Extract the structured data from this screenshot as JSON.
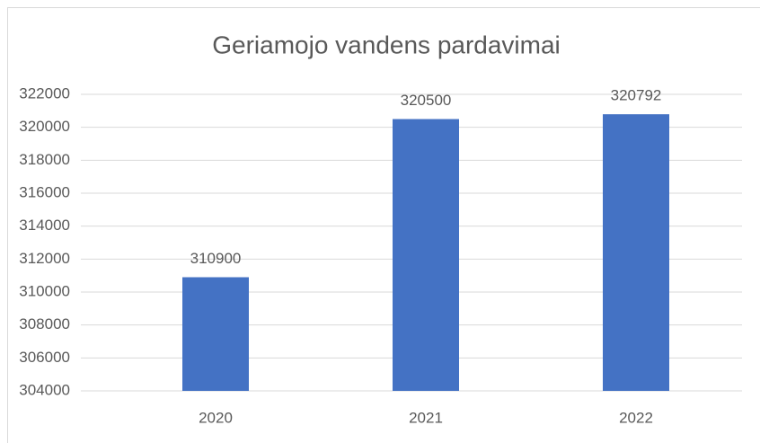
{
  "chart_data": {
    "type": "bar",
    "title": "Geriamojo vandens pardavimai",
    "categories": [
      "2020",
      "2021",
      "2022"
    ],
    "values": [
      310900,
      320500,
      320792
    ],
    "color": "#4472c4",
    "ylim": [
      304000,
      322000
    ],
    "yticks": [
      304000,
      306000,
      308000,
      310000,
      312000,
      314000,
      316000,
      318000,
      320000,
      322000
    ],
    "grid": true
  }
}
